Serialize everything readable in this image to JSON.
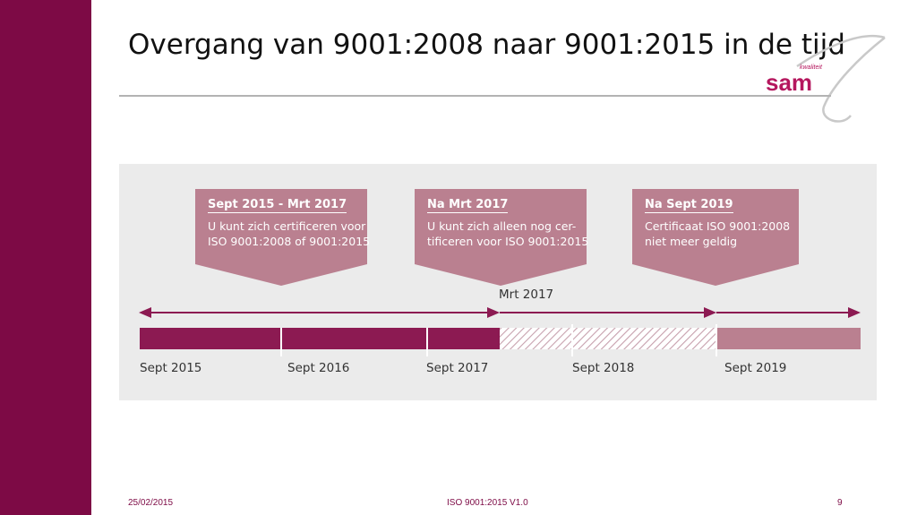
{
  "slide": {
    "title": "Overgang van 9001:2008 naar 9001:2015 in de tijd",
    "logo": {
      "small_text": "kwaliteit",
      "main_text": "sam"
    },
    "footer": {
      "date": "25/02/2015",
      "doc": "ISO 9001:2015 V1.0",
      "page": "9"
    }
  },
  "timeline": {
    "marker_label": "Mrt 2017",
    "dates": [
      "Sept 2015",
      "Sept 2016",
      "Sept 2017",
      "Sept 2018",
      "Sept 2019"
    ],
    "callouts": [
      {
        "heading": "Sept 2015 - Mrt 2017",
        "line1": "U kunt zich certificeren voor",
        "line2": "ISO 9001:2008 of 9001:2015"
      },
      {
        "heading": "Na Mrt 2017",
        "line1": "U kunt zich alleen nog cer-",
        "line2": "tificeren voor ISO 9001:2015"
      },
      {
        "heading": "Na Sept 2019",
        "line1": "Certificaat ISO 9001:2008",
        "line2": "niet meer geldig"
      }
    ]
  },
  "colors": {
    "dark": "#8c1a52",
    "light": "#ba8090",
    "panel": "#ebebeb",
    "sidebar": "#7d0a45"
  }
}
